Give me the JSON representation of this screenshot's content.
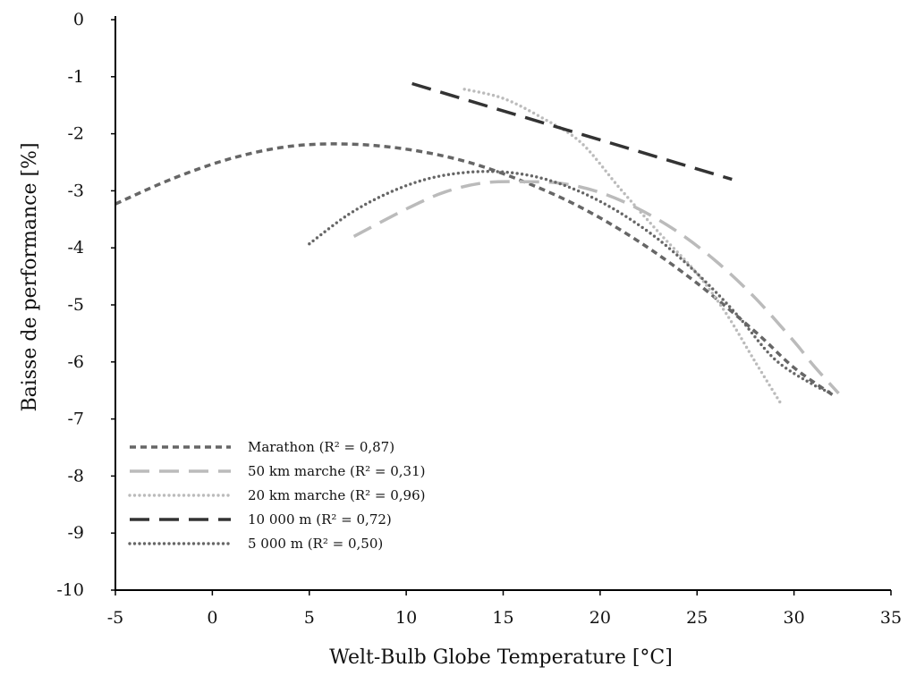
{
  "chart_data": {
    "type": "line",
    "title": "",
    "xlabel": "Welt-Bulb Globe Temperature [°C]",
    "ylabel": "Baisse de performance [%]",
    "xlim": [
      -5,
      35
    ],
    "ylim": [
      -10,
      0
    ],
    "x_ticks": [
      -5,
      0,
      5,
      10,
      15,
      20,
      25,
      30,
      35
    ],
    "x_tick_labels": [
      "-5",
      "0",
      "5",
      "10",
      "15",
      "20",
      "25",
      "30",
      "35"
    ],
    "y_ticks": [
      0,
      -1,
      -2,
      -3,
      -4,
      -5,
      -6,
      -7,
      -8,
      -9,
      -10
    ],
    "y_tick_labels": [
      "0",
      "-1",
      "-2",
      "-3",
      "-4",
      "-5",
      "-6",
      "-7",
      "-8",
      "-9",
      "-10"
    ],
    "grid": false,
    "legend_position": "bottom-left",
    "series": [
      {
        "name": "Marathon (R² = 0,87)",
        "color": "#666666",
        "style": "short-dash",
        "x": [
          -5,
          -2,
          1,
          4,
          7,
          10,
          13,
          16,
          19,
          22,
          25,
          28,
          30,
          32
        ],
        "y": [
          -3.23,
          -2.78,
          -2.43,
          -2.22,
          -2.18,
          -2.27,
          -2.48,
          -2.83,
          -3.29,
          -3.89,
          -4.62,
          -5.47,
          -6.1,
          -6.58
        ]
      },
      {
        "name": "50 km marche (R² = 0,31)",
        "color": "#bbbbbb",
        "style": "long-dash",
        "x": [
          7.3,
          10,
          12,
          14,
          16,
          18,
          20,
          22,
          24,
          26,
          28,
          30,
          31,
          32.3
        ],
        "y": [
          -3.8,
          -3.32,
          -3.02,
          -2.86,
          -2.84,
          -2.87,
          -3.03,
          -3.32,
          -3.72,
          -4.24,
          -4.88,
          -5.64,
          -6.06,
          -6.55
        ]
      },
      {
        "name": "20 km marche (R² = 0,96)",
        "color": "#bbbbbb",
        "style": "dotted",
        "x": [
          13,
          15,
          17,
          19,
          21,
          23,
          25,
          26.5,
          28,
          29.3
        ],
        "y": [
          -1.22,
          -1.38,
          -1.72,
          -2.15,
          -2.95,
          -3.72,
          -4.45,
          -5.15,
          -6.0,
          -6.72
        ]
      },
      {
        "name": "10 000 m (R² = 0,72)",
        "color": "#333333",
        "style": "long-dash",
        "x": [
          10.3,
          26.8
        ],
        "y": [
          -1.12,
          -2.8
        ]
      },
      {
        "name": "5 000 m (R² = 0,50)",
        "color": "#666666",
        "style": "dotted",
        "x": [
          5,
          7,
          9,
          11,
          13,
          15,
          17,
          19,
          21,
          23,
          25,
          27,
          29,
          31,
          32
        ],
        "y": [
          -3.93,
          -3.42,
          -3.05,
          -2.8,
          -2.68,
          -2.67,
          -2.78,
          -3.02,
          -3.38,
          -3.85,
          -4.45,
          -5.15,
          -5.95,
          -6.4,
          -6.55
        ]
      }
    ]
  }
}
